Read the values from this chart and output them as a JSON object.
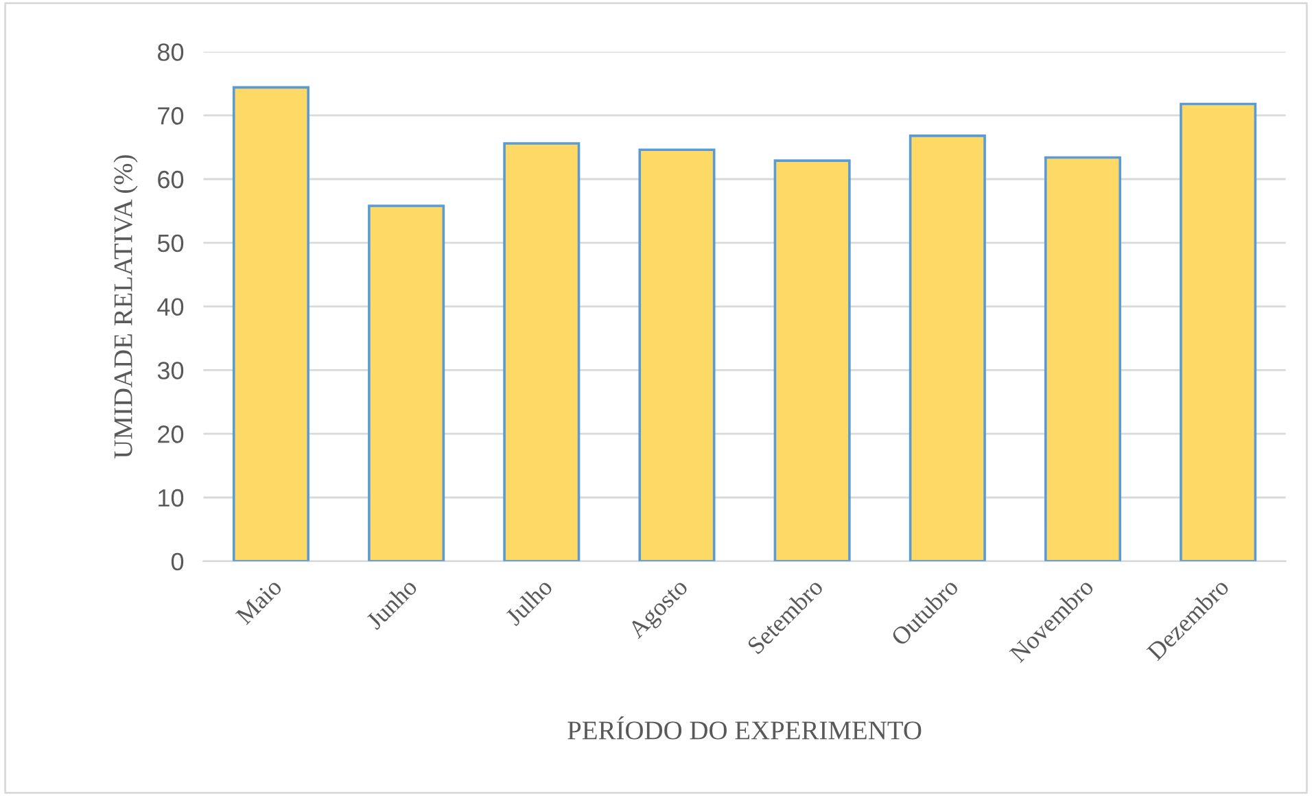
{
  "chart_data": {
    "type": "bar",
    "xlabel": "PERÍODO DO EXPERIMENTO",
    "ylabel": "UMIDADE RELATIVA (%)",
    "categories": [
      "Maio",
      "Junho",
      "Julho",
      "Agosto",
      "Setembro",
      "Outubro",
      "Novembro",
      "Dezembro"
    ],
    "values": [
      74.4,
      55.8,
      65.6,
      64.6,
      62.9,
      66.8,
      63.4,
      71.8
    ],
    "color": "#ffd966",
    "ylim": [
      0,
      80
    ],
    "yticks": [
      0,
      10,
      20,
      30,
      40,
      50,
      60,
      70,
      80
    ],
    "grid": "y",
    "legend": false
  }
}
